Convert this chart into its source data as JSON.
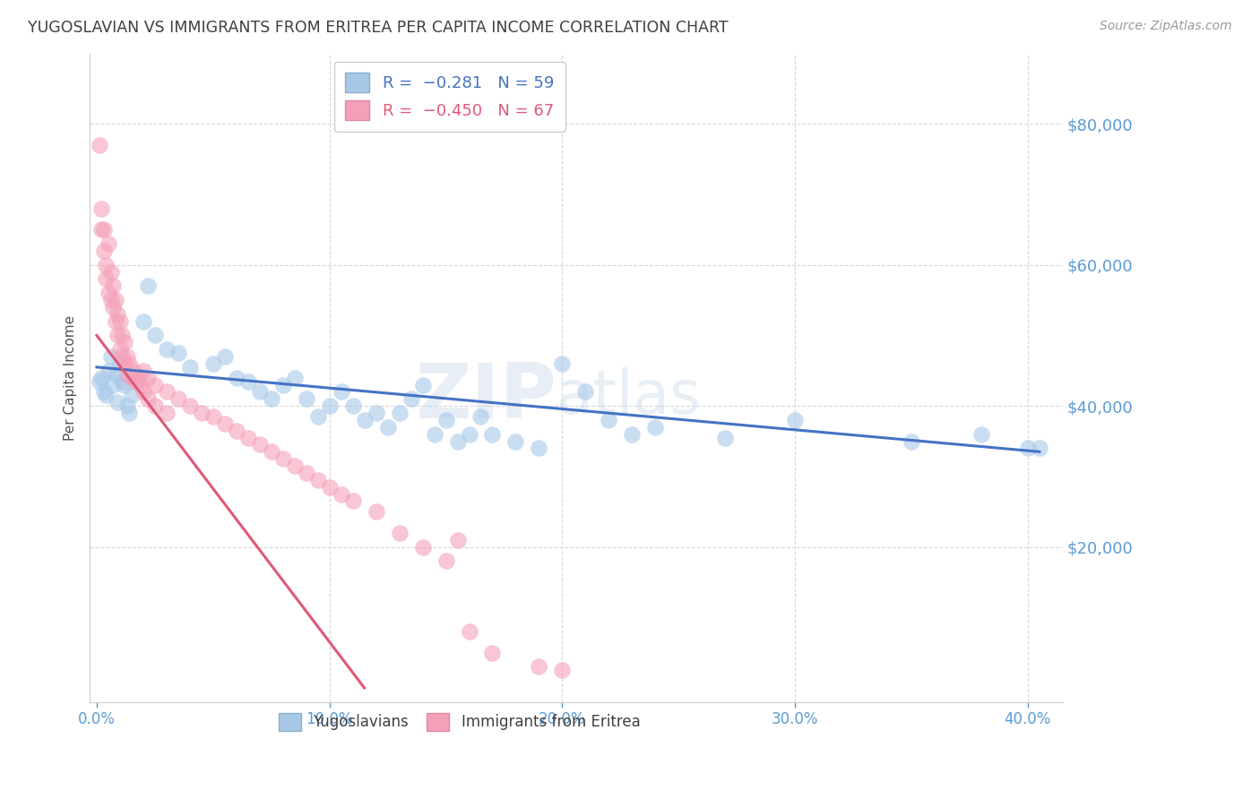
{
  "title": "YUGOSLAVIAN VS IMMIGRANTS FROM ERITREA PER CAPITA INCOME CORRELATION CHART",
  "source": "Source: ZipAtlas.com",
  "ylabel": "Per Capita Income",
  "xlabel_ticks": [
    "0.0%",
    "10.0%",
    "20.0%",
    "30.0%",
    "40.0%"
  ],
  "xlabel_vals": [
    0.0,
    0.1,
    0.2,
    0.3,
    0.4
  ],
  "ytick_labels": [
    "$20,000",
    "$40,000",
    "$60,000",
    "$80,000"
  ],
  "ytick_vals": [
    20000,
    40000,
    60000,
    80000
  ],
  "ylim": [
    -2000,
    90000
  ],
  "xlim": [
    -0.003,
    0.415
  ],
  "blue_color": "#a8c8e8",
  "pink_color": "#f4a0b8",
  "blue_line_color": "#4472c4",
  "pink_line_color": "#e05878",
  "right_axis_color": "#5b9bd5",
  "title_color": "#404040",
  "yug_scatter": [
    [
      0.001,
      43500
    ],
    [
      0.002,
      44000
    ],
    [
      0.003,
      42000
    ],
    [
      0.004,
      41500
    ],
    [
      0.005,
      45000
    ],
    [
      0.006,
      47000
    ],
    [
      0.007,
      43000
    ],
    [
      0.008,
      44500
    ],
    [
      0.009,
      40500
    ],
    [
      0.01,
      46000
    ],
    [
      0.011,
      43500
    ],
    [
      0.012,
      43000
    ],
    [
      0.013,
      40000
    ],
    [
      0.014,
      39000
    ],
    [
      0.015,
      41500
    ],
    [
      0.02,
      52000
    ],
    [
      0.022,
      57000
    ],
    [
      0.025,
      50000
    ],
    [
      0.03,
      48000
    ],
    [
      0.035,
      47500
    ],
    [
      0.04,
      45500
    ],
    [
      0.05,
      46000
    ],
    [
      0.055,
      47000
    ],
    [
      0.06,
      44000
    ],
    [
      0.065,
      43500
    ],
    [
      0.07,
      42000
    ],
    [
      0.075,
      41000
    ],
    [
      0.08,
      43000
    ],
    [
      0.085,
      44000
    ],
    [
      0.09,
      41000
    ],
    [
      0.095,
      38500
    ],
    [
      0.1,
      40000
    ],
    [
      0.105,
      42000
    ],
    [
      0.11,
      40000
    ],
    [
      0.115,
      38000
    ],
    [
      0.12,
      39000
    ],
    [
      0.125,
      37000
    ],
    [
      0.13,
      39000
    ],
    [
      0.135,
      41000
    ],
    [
      0.14,
      43000
    ],
    [
      0.145,
      36000
    ],
    [
      0.15,
      38000
    ],
    [
      0.155,
      35000
    ],
    [
      0.16,
      36000
    ],
    [
      0.165,
      38500
    ],
    [
      0.17,
      36000
    ],
    [
      0.18,
      35000
    ],
    [
      0.19,
      34000
    ],
    [
      0.2,
      46000
    ],
    [
      0.21,
      42000
    ],
    [
      0.22,
      38000
    ],
    [
      0.23,
      36000
    ],
    [
      0.24,
      37000
    ],
    [
      0.27,
      35500
    ],
    [
      0.3,
      38000
    ],
    [
      0.35,
      35000
    ],
    [
      0.38,
      36000
    ],
    [
      0.4,
      34000
    ],
    [
      0.405,
      34000
    ]
  ],
  "eri_scatter": [
    [
      0.001,
      77000
    ],
    [
      0.002,
      65000
    ],
    [
      0.002,
      68000
    ],
    [
      0.003,
      62000
    ],
    [
      0.003,
      65000
    ],
    [
      0.004,
      60000
    ],
    [
      0.004,
      58000
    ],
    [
      0.005,
      63000
    ],
    [
      0.005,
      56000
    ],
    [
      0.006,
      59000
    ],
    [
      0.006,
      55000
    ],
    [
      0.007,
      57000
    ],
    [
      0.007,
      54000
    ],
    [
      0.008,
      55000
    ],
    [
      0.008,
      52000
    ],
    [
      0.009,
      53000
    ],
    [
      0.009,
      50000
    ],
    [
      0.01,
      52000
    ],
    [
      0.01,
      48000
    ],
    [
      0.011,
      50000
    ],
    [
      0.011,
      47000
    ],
    [
      0.012,
      49000
    ],
    [
      0.012,
      46000
    ],
    [
      0.013,
      47000
    ],
    [
      0.013,
      44500
    ],
    [
      0.014,
      46000
    ],
    [
      0.015,
      44000
    ],
    [
      0.016,
      45000
    ],
    [
      0.017,
      43500
    ],
    [
      0.018,
      44000
    ],
    [
      0.019,
      43000
    ],
    [
      0.02,
      45000
    ],
    [
      0.02,
      42000
    ],
    [
      0.022,
      44000
    ],
    [
      0.022,
      41000
    ],
    [
      0.025,
      43000
    ],
    [
      0.025,
      40000
    ],
    [
      0.03,
      42000
    ],
    [
      0.03,
      39000
    ],
    [
      0.035,
      41000
    ],
    [
      0.04,
      40000
    ],
    [
      0.045,
      39000
    ],
    [
      0.05,
      38500
    ],
    [
      0.055,
      37500
    ],
    [
      0.06,
      36500
    ],
    [
      0.065,
      35500
    ],
    [
      0.07,
      34500
    ],
    [
      0.075,
      33500
    ],
    [
      0.08,
      32500
    ],
    [
      0.085,
      31500
    ],
    [
      0.09,
      30500
    ],
    [
      0.095,
      29500
    ],
    [
      0.1,
      28500
    ],
    [
      0.105,
      27500
    ],
    [
      0.11,
      26500
    ],
    [
      0.12,
      25000
    ],
    [
      0.13,
      22000
    ],
    [
      0.14,
      20000
    ],
    [
      0.15,
      18000
    ],
    [
      0.155,
      21000
    ],
    [
      0.16,
      8000
    ],
    [
      0.17,
      5000
    ],
    [
      0.19,
      3000
    ],
    [
      0.2,
      2500
    ]
  ],
  "yug_line": [
    [
      0.0,
      45500
    ],
    [
      0.405,
      33500
    ]
  ],
  "eri_line": [
    [
      0.0,
      50000
    ],
    [
      0.115,
      0
    ]
  ],
  "background_color": "#ffffff",
  "grid_color": "#d8d8d8"
}
